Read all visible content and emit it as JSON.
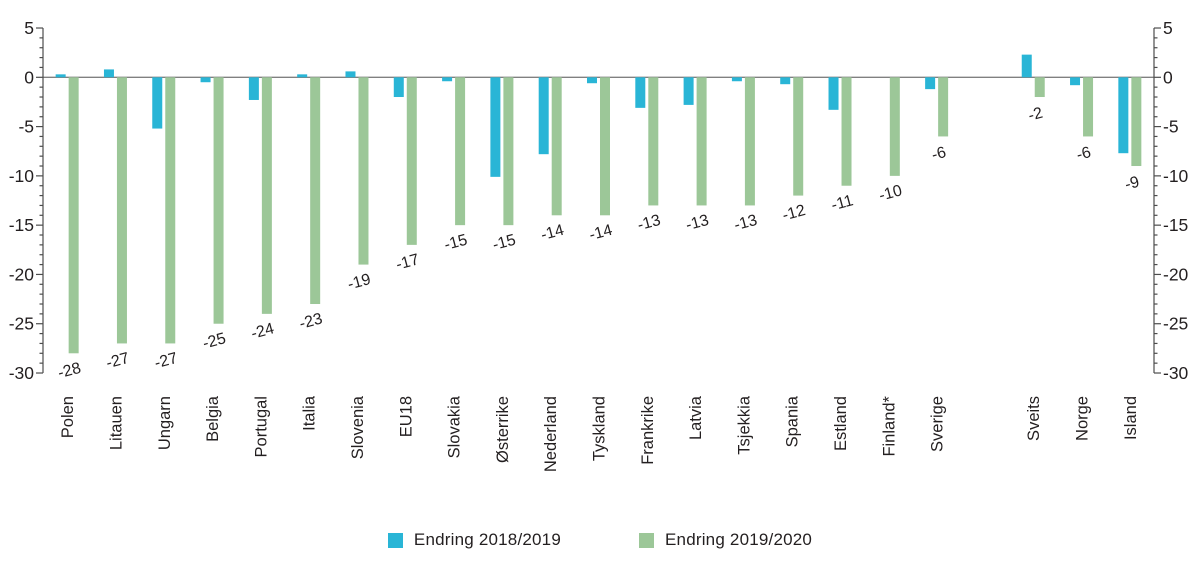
{
  "chart_data": {
    "type": "bar",
    "title": "",
    "categories": [
      "Polen",
      "Litauen",
      "Ungarn",
      "Belgia",
      "Portugal",
      "Italia",
      "Slovenia",
      "EU18",
      "Slovakia",
      "Østerrike",
      "Nederland",
      "Tyskland",
      "Frankrike",
      "Latvia",
      "Tsjekkia",
      "Spania",
      "Estland",
      "Finland*",
      "Sverige",
      "Sveits",
      "Norge",
      "Island"
    ],
    "gap_after_category": "Sverige",
    "series": [
      {
        "name": "Endring 2018/2019",
        "color": "#29b5d6",
        "labels_shown": false,
        "values": [
          0.3,
          0.8,
          -5.2,
          -0.5,
          -2.3,
          0.3,
          0.6,
          -2.0,
          -0.4,
          -10.1,
          -7.8,
          -0.6,
          -3.1,
          -2.8,
          -0.4,
          -0.7,
          -3.3,
          null,
          -1.2,
          2.3,
          -0.8,
          -7.7
        ]
      },
      {
        "name": "Endring 2019/2020",
        "color": "#9cc798",
        "labels_shown": true,
        "values": [
          -28,
          -27,
          -27,
          -25,
          -24,
          -23,
          -19,
          -17,
          -15,
          -15,
          -14,
          -14,
          -13,
          -13,
          -13,
          -12,
          -11,
          -10,
          -6,
          -2,
          -6,
          -9
        ],
        "data_labels": [
          "-28",
          "-27",
          "-27",
          "-25",
          "-24",
          "-23",
          "-19",
          "-17",
          "-15",
          "-15",
          "-14",
          "-14",
          "-13",
          "-13",
          "-13",
          "-12",
          "-11",
          "-10",
          "-6",
          "-2",
          "-6",
          "-9"
        ]
      }
    ],
    "ylim": [
      -30,
      5
    ],
    "yticks_major": [
      5,
      0,
      -5,
      -10,
      -15,
      -20,
      -25,
      -30
    ],
    "ytick_minor_step": 1,
    "grid": "zero line only",
    "axes": "mirrored y-axis left and right, no x-axis line",
    "legend_position": "bottom center",
    "colors": {
      "text": "#231f20",
      "axis": "#4d4d4d",
      "zero_line": "#808080"
    }
  },
  "legend": {
    "items": [
      {
        "label": "Endring 2018/2019"
      },
      {
        "label": "Endring 2019/2020"
      }
    ]
  }
}
